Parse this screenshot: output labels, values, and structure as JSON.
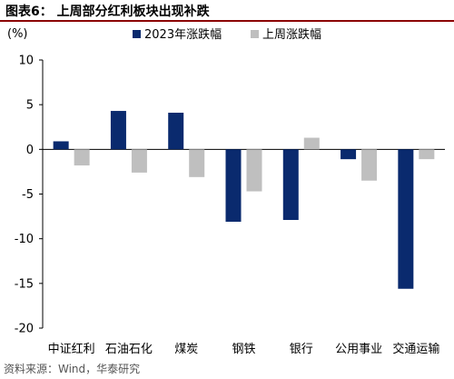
{
  "header": {
    "title": "图表6：  上周部分红利板块出现补跌"
  },
  "footer": {
    "source": "资料来源：Wind，华泰研究"
  },
  "colors": {
    "series_2023": "#0a2a6e",
    "series_last_week": "#bfbfbf",
    "title_rule": "#8b0000"
  },
  "chart_data": {
    "type": "bar",
    "unit_label": "(%)",
    "categories": [
      "中证红利",
      "石油石化",
      "煤炭",
      "钢铁",
      "银行",
      "公用事业",
      "交通运输"
    ],
    "series": [
      {
        "name": "2023年涨跌幅",
        "values": [
          0.9,
          4.3,
          4.1,
          -8.1,
          -7.9,
          -1.1,
          -15.6
        ]
      },
      {
        "name": "上周涨跌幅",
        "values": [
          -1.8,
          -2.6,
          -3.1,
          -4.7,
          1.3,
          -3.5,
          -1.1
        ]
      }
    ],
    "ylim": [
      -20,
      10
    ],
    "yticks": [
      10,
      5,
      0,
      -5,
      -10,
      -15,
      -20
    ],
    "legend_position": "top",
    "grid": false
  }
}
